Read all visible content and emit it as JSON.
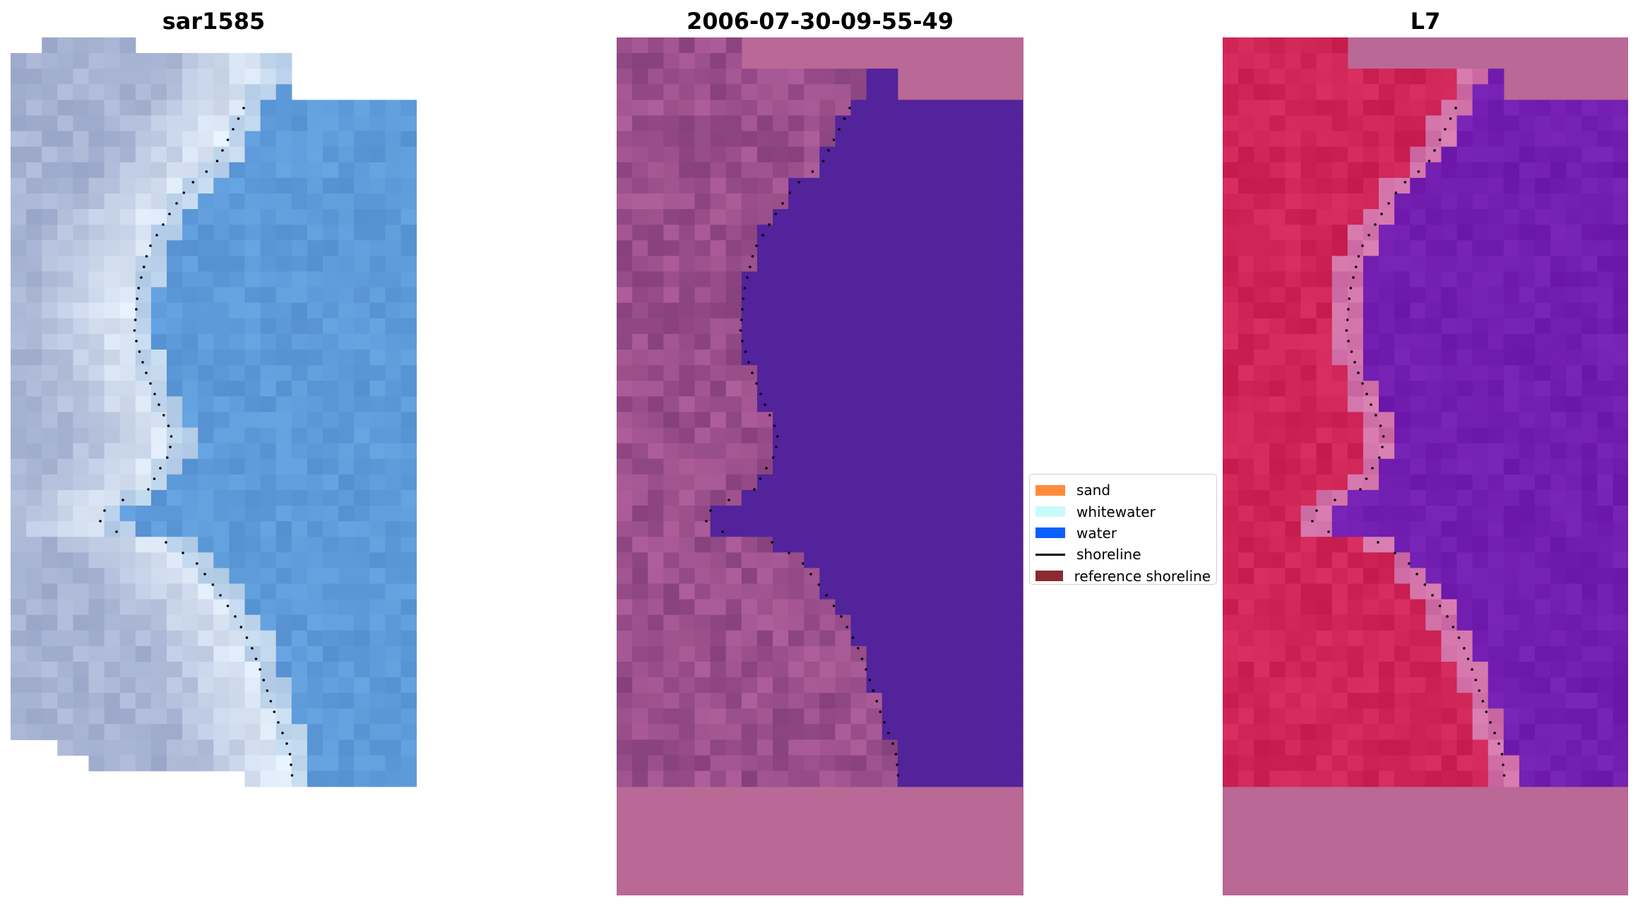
{
  "panels": [
    {
      "title": "sar1585",
      "content": "rgb-image"
    },
    {
      "title": "2006-07-30-09-55-49",
      "content": "classified-image"
    },
    {
      "title": "L7",
      "content": "index-image"
    }
  ],
  "legend": {
    "items": [
      {
        "label": "sand",
        "color": "#ff8c3c",
        "kind": "patch"
      },
      {
        "label": "whitewater",
        "color": "#c8fafa",
        "kind": "patch"
      },
      {
        "label": "water",
        "color": "#0a5fff",
        "kind": "patch"
      },
      {
        "label": "shoreline",
        "color": "#000000",
        "kind": "line"
      },
      {
        "label": "reference shoreline",
        "color": "#8b2a30",
        "kind": "patch"
      }
    ]
  },
  "colors": {
    "rgb_land": "#9aa6c8",
    "rgb_water": "#5590d0",
    "class_land": "#9a4a86",
    "class_water": "#52239a",
    "class_nodata": "#ba6896",
    "index_land": "#c41a4c",
    "index_water": "#6a16a8",
    "index_nodata": "#ba6896",
    "shoreline": "#000000"
  }
}
